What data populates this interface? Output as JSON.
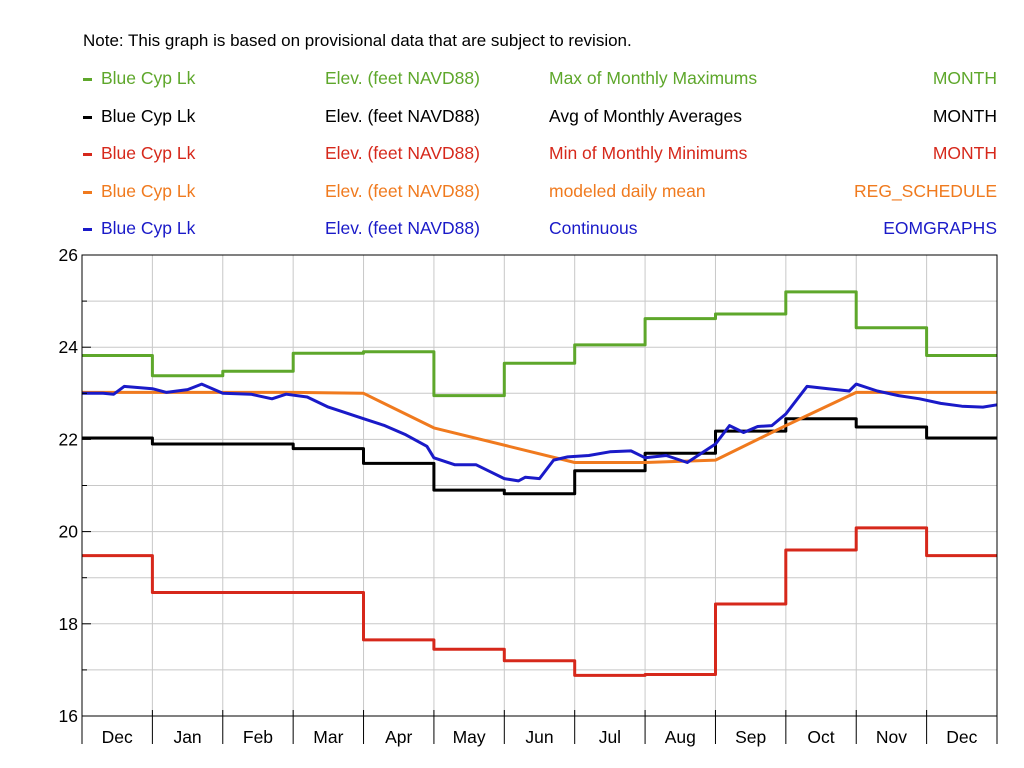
{
  "note": "Note: This graph is based on provisional data that are subject to revision.",
  "legend": [
    {
      "location": "Blue Cyp Lk",
      "parameter": "Elev. (feet NAVD88)",
      "statistic": "Max of Monthly Maximums",
      "interval": "MONTH",
      "color": "#5ea72b"
    },
    {
      "location": "Blue Cyp Lk",
      "parameter": "Elev. (feet NAVD88)",
      "statistic": "Avg of Monthly Averages",
      "interval": "MONTH",
      "color": "#000000"
    },
    {
      "location": "Blue Cyp Lk",
      "parameter": "Elev. (feet NAVD88)",
      "statistic": "Min of Monthly Minimums",
      "interval": "MONTH",
      "color": "#d6281b"
    },
    {
      "location": "Blue Cyp Lk",
      "parameter": "Elev. (feet NAVD88)",
      "statistic": "modeled daily mean",
      "interval": "REG_SCHEDULE",
      "color": "#f07a1e"
    },
    {
      "location": "Blue Cyp Lk",
      "parameter": "Elev. (feet NAVD88)",
      "statistic": "Continuous",
      "interval": "EOMGRAPHS",
      "color": "#1a1ac8"
    }
  ],
  "chart_data": {
    "type": "line",
    "title": "",
    "xlabel": "",
    "ylabel": "",
    "categories": [
      "Dec",
      "Jan",
      "Feb",
      "Mar",
      "Apr",
      "May",
      "Jun",
      "Jul",
      "Aug",
      "Sep",
      "Oct",
      "Nov",
      "Dec"
    ],
    "ylim": [
      16,
      26
    ],
    "yticks": [
      16,
      18,
      20,
      22,
      24,
      26
    ],
    "grid": true,
    "legend_placement": "top",
    "series": [
      {
        "name": "Max of Monthly Maximums",
        "step": true,
        "color": "#5ea72b",
        "values": [
          23.82,
          23.38,
          23.48,
          23.87,
          23.9,
          22.95,
          23.65,
          24.05,
          24.62,
          24.72,
          25.2,
          24.42,
          23.82
        ]
      },
      {
        "name": "Avg of Monthly Averages",
        "step": true,
        "color": "#000000",
        "values": [
          22.03,
          21.9,
          21.9,
          21.8,
          21.48,
          20.9,
          20.82,
          21.32,
          21.7,
          22.18,
          22.45,
          22.27,
          22.03
        ]
      },
      {
        "name": "Min of Monthly Minimums",
        "step": true,
        "color": "#d6281b",
        "values": [
          19.48,
          18.68,
          18.68,
          18.68,
          17.65,
          17.45,
          17.2,
          16.88,
          16.9,
          18.43,
          19.6,
          20.08,
          19.48
        ]
      },
      {
        "name": "modeled daily mean",
        "step": false,
        "color": "#f07a1e",
        "x": [
          0,
          3.0,
          4.0,
          5.0,
          7.0,
          8.0,
          9.0,
          10.0,
          11.0,
          13.0
        ],
        "values": [
          23.02,
          23.02,
          23.0,
          22.25,
          21.5,
          21.5,
          21.55,
          22.3,
          23.02,
          23.02
        ]
      },
      {
        "name": "Continuous",
        "step": false,
        "color": "#1a1ac8",
        "x": [
          0,
          0.3,
          0.45,
          0.6,
          1.0,
          1.2,
          1.5,
          1.7,
          2.0,
          2.4,
          2.7,
          2.9,
          3.2,
          3.5,
          3.7,
          4.0,
          4.3,
          4.6,
          4.9,
          5.0,
          5.3,
          5.6,
          5.8,
          6.0,
          6.2,
          6.3,
          6.5,
          6.7,
          6.9,
          7.2,
          7.5,
          7.8,
          8.0,
          8.3,
          8.6,
          8.8,
          9.0,
          9.2,
          9.4,
          9.6,
          9.8,
          10.0,
          10.3,
          10.6,
          10.9,
          11.0,
          11.3,
          11.6,
          11.9,
          12.2,
          12.5,
          12.8,
          13.0
        ],
        "values": [
          23.0,
          23.0,
          22.98,
          23.15,
          23.1,
          23.02,
          23.08,
          23.2,
          23.0,
          22.98,
          22.88,
          22.98,
          22.92,
          22.7,
          22.6,
          22.45,
          22.3,
          22.1,
          21.85,
          21.6,
          21.45,
          21.45,
          21.3,
          21.15,
          21.1,
          21.18,
          21.15,
          21.55,
          21.62,
          21.65,
          21.73,
          21.75,
          21.6,
          21.65,
          21.5,
          21.7,
          21.9,
          22.3,
          22.15,
          22.28,
          22.3,
          22.55,
          23.15,
          23.1,
          23.05,
          23.2,
          23.05,
          22.95,
          22.88,
          22.78,
          22.72,
          22.7,
          22.75
        ]
      }
    ]
  }
}
